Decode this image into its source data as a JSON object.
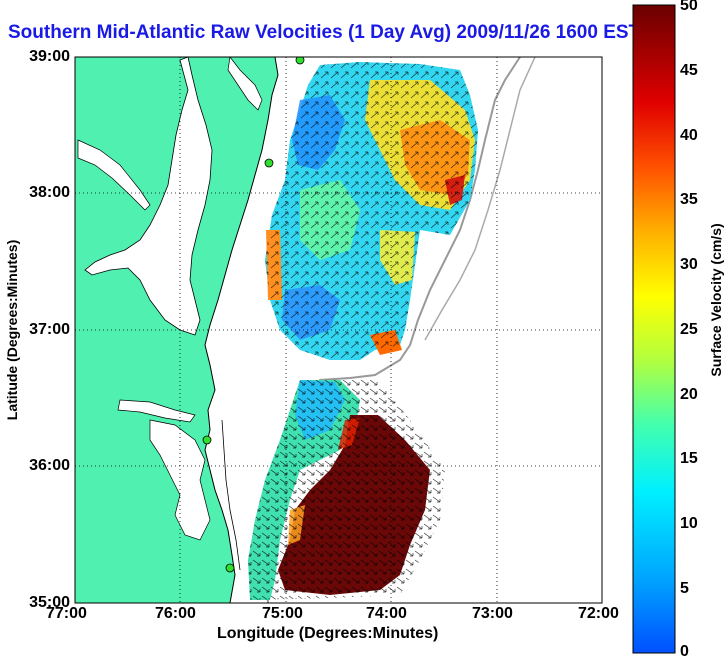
{
  "title": "Southern Mid-Atlantic Raw Velocities (1 Day Avg) 2009/11/26 1600 EST",
  "axes": {
    "xlabel": "Longitude (Degrees:Minutes)",
    "ylabel": "Latitude (Degrees:Minutes)",
    "xticks": [
      "77:00",
      "76:00",
      "75:00",
      "74:00",
      "73:00",
      "72:00"
    ],
    "yticks": [
      "39:00",
      "38:00",
      "37:00",
      "36:00",
      "35:00"
    ]
  },
  "colorbar": {
    "label": "Surface Velocity (cm/s)",
    "ticks": [
      "50",
      "45",
      "40",
      "35",
      "30",
      "25",
      "20",
      "15",
      "10",
      "5",
      "0"
    ],
    "range": [
      0,
      50
    ],
    "colors": [
      "#0050ff",
      "#00b4ff",
      "#00ffff",
      "#40ffc0",
      "#a0ff60",
      "#ffff00",
      "#ffb000",
      "#ff5000",
      "#d00000",
      "#6a0000"
    ]
  },
  "map": {
    "land_color": "#4ff0b0",
    "water_color": "#ffffff",
    "lon_range": [
      -77,
      -72
    ],
    "lat_range": [
      35,
      39
    ]
  }
}
